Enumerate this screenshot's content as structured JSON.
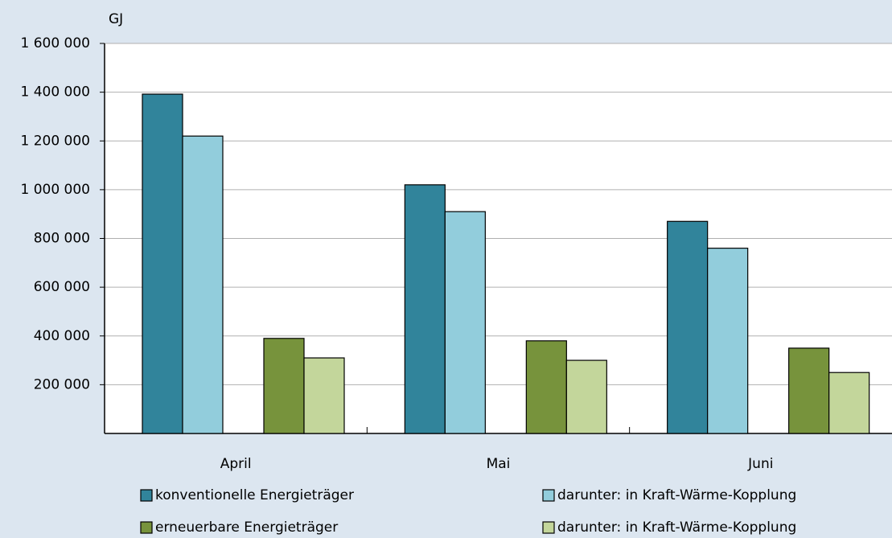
{
  "chart_data": {
    "type": "bar",
    "y_unit_label": "GJ",
    "categories": [
      "April",
      "Mai",
      "Juni"
    ],
    "series": [
      {
        "name": "konventionelle Energieträger",
        "color": "#31849b",
        "values": [
          1392000,
          1020000,
          870000
        ]
      },
      {
        "name": "darunter: in Kraft-Wärme-Kopplung",
        "color": "#92cddc",
        "values": [
          1220000,
          910000,
          760000
        ]
      },
      {
        "name": "erneuerbare Energieträger",
        "color": "#77933c",
        "values": [
          390000,
          380000,
          350000
        ]
      },
      {
        "name": "darunter: in Kraft-Wärme-Kopplung",
        "color": "#c3d69b",
        "values": [
          310000,
          300000,
          250000
        ]
      }
    ],
    "ylim": [
      0,
      1600000
    ],
    "yticks": [
      {
        "value": 200000,
        "label": "200 000"
      },
      {
        "value": 400000,
        "label": "400 000"
      },
      {
        "value": 600000,
        "label": "600 000"
      },
      {
        "value": 800000,
        "label": "800 000"
      },
      {
        "value": 1000000,
        "label": "1 000 000"
      },
      {
        "value": 1200000,
        "label": "1 200 000"
      },
      {
        "value": 1400000,
        "label": "1 400 000"
      },
      {
        "value": 1600000,
        "label": "1 600 000"
      }
    ],
    "grid": true
  }
}
